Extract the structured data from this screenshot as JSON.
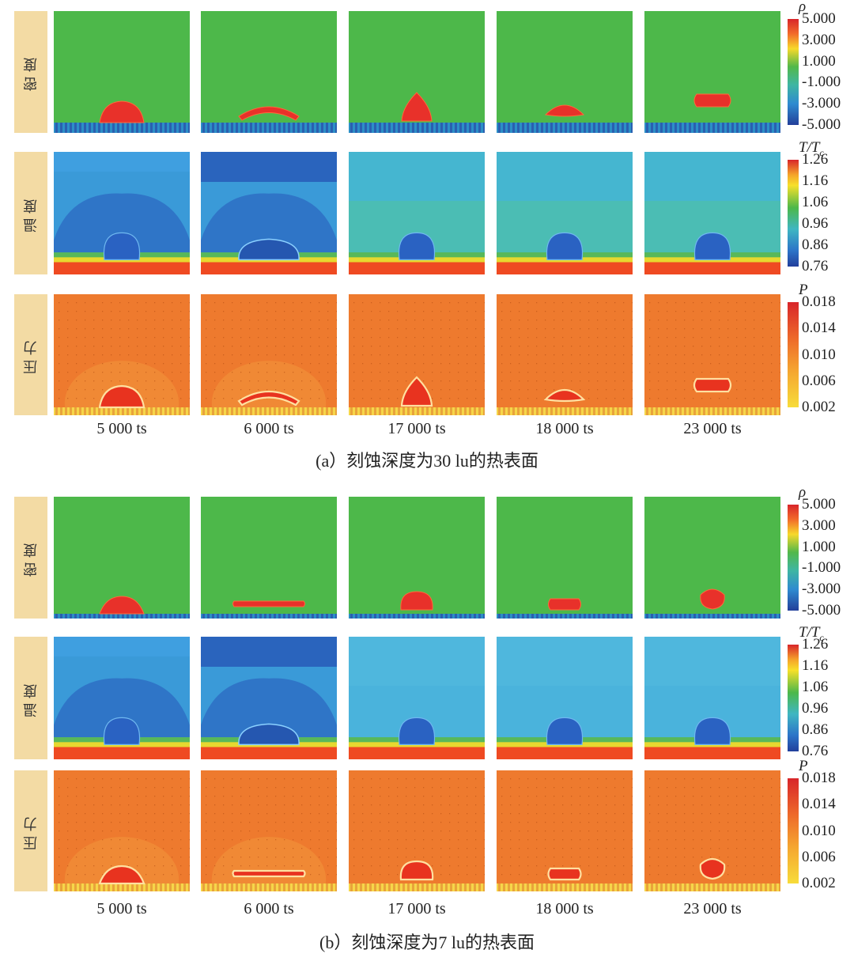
{
  "rows": [
    {
      "key": "density",
      "label": "密度"
    },
    {
      "key": "temperature",
      "label": "温度"
    },
    {
      "key": "pressure",
      "label": "压力"
    }
  ],
  "timesteps": [
    "5 000 ts",
    "6 000 ts",
    "17 000 ts",
    "18 000 ts",
    "23 000 ts"
  ],
  "colorbars": {
    "density": {
      "symbol": "ρ",
      "ticks": [
        "5.000",
        "3.000",
        "1.000",
        "-1.000",
        "-3.000",
        "-5.000"
      ]
    },
    "temperature": {
      "symbol": "T/T",
      "sub": "c",
      "ticks": [
        "1.26",
        "1.16",
        "1.06",
        "0.96",
        "0.86",
        "0.76"
      ]
    },
    "pressure": {
      "symbol": "P",
      "ticks": [
        "0.018",
        "0.014",
        "0.010",
        "0.006",
        "0.002"
      ]
    }
  },
  "sections": [
    {
      "id": "a",
      "caption": "(a）刻蚀深度为30 lu的热表面",
      "surface": "deep"
    },
    {
      "id": "b",
      "caption": "(b）刻蚀深度为7 lu的热表面",
      "surface": "shallow"
    }
  ],
  "colors": {
    "density_bg": "#4db84a",
    "droplet": "#e8312a",
    "surface_blue": "#2a5fb0",
    "temp_dark": "#2e6fc4",
    "temp_mid": "#3a9ad8",
    "temp_light": "#45b6d0",
    "temp_green": "#58b85a",
    "hot": "#ef4a22",
    "pressure_bg": "#ee7a2e",
    "label_bg": "#f3dba4"
  }
}
